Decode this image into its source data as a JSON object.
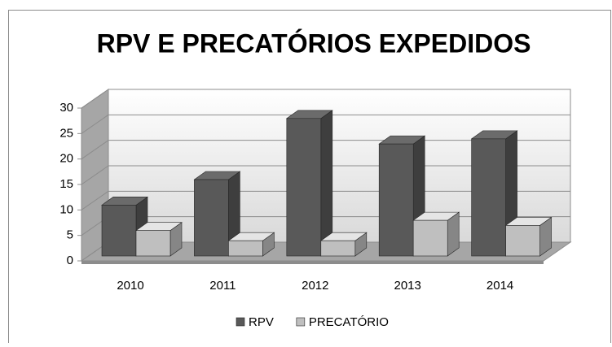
{
  "chart_data": {
    "type": "bar3d",
    "title": "RPV E PRECATÓRIOS EXPEDIDOS",
    "categories": [
      "2010",
      "2011",
      "2012",
      "2013",
      "2014"
    ],
    "series": [
      {
        "name": "RPV",
        "color": "#595959",
        "values": [
          10,
          15,
          27,
          22,
          23
        ]
      },
      {
        "name": "PRECATÓRIO",
        "color": "#bfbfbf",
        "values": [
          5,
          3,
          3,
          7,
          6
        ]
      }
    ],
    "ylim": [
      0,
      30
    ],
    "yticks": [
      0,
      5,
      10,
      15,
      20,
      25,
      30
    ],
    "grid": true,
    "legend": "bottom"
  }
}
